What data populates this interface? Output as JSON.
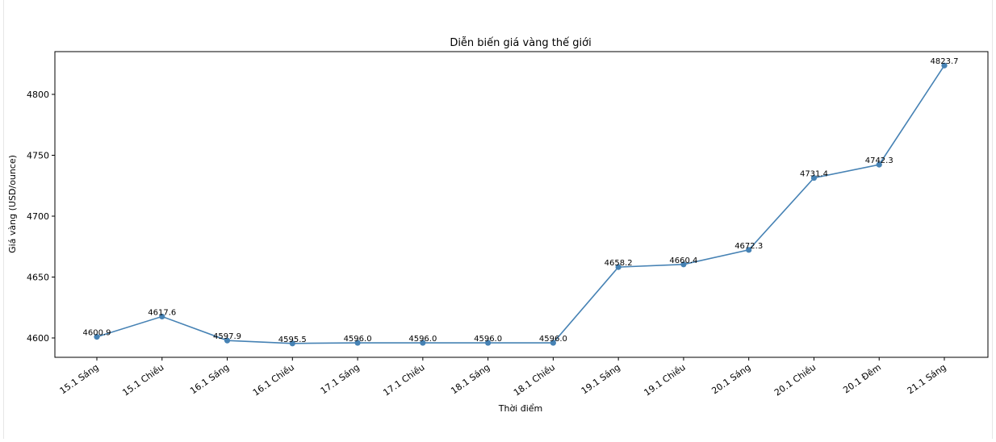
{
  "chart_data": {
    "type": "line",
    "title": "Diễn biến giá vàng thế giới",
    "xlabel": "Thời điểm",
    "ylabel": "Giá vàng (USD/ounce)",
    "categories": [
      "15.1 Sáng",
      "15.1 Chiều",
      "16.1 Sáng",
      "16.1 Chiều",
      "17.1 Sáng",
      "17.1 Chiều",
      "18.1 Sáng",
      "18.1 Chiều",
      "19.1 Sáng",
      "19.1 Chiều",
      "20.1 Sáng",
      "20.1 Chiều",
      "20.1 Đêm",
      "21.1 Sáng"
    ],
    "series": [
      {
        "values": [
          4600.9,
          4617.6,
          4597.9,
          4595.5,
          4596.0,
          4596.0,
          4596.0,
          4596.0,
          4658.2,
          4660.4,
          4672.3,
          4731.4,
          4742.3,
          4823.7
        ],
        "data_labels": [
          "4600.9",
          "4617.6",
          "4597.9",
          "4595.5",
          "4596.0",
          "4596.0",
          "4596.0",
          "4596.0",
          "4658.2",
          "4660.4",
          "4672.3",
          "4731.4",
          "4742.3",
          "4823.7"
        ],
        "color": "#4682b4"
      }
    ],
    "yticks": [
      4600,
      4650,
      4700,
      4750,
      4800
    ],
    "ytick_labels": [
      "4600",
      "4650",
      "4700",
      "4750",
      "4800"
    ],
    "ylim": [
      4584.1,
      4835.1
    ],
    "grid": false,
    "legend": "none"
  }
}
